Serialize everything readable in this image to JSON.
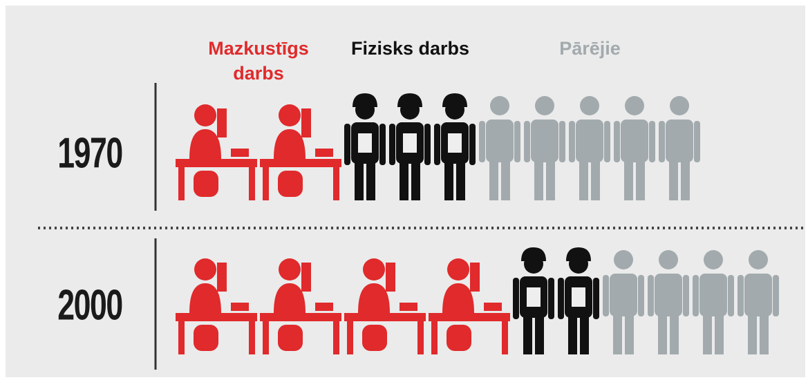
{
  "chart_data": {
    "type": "pictogram",
    "categories": [
      "1970",
      "2000"
    ],
    "series": [
      {
        "name": "Mazkustīgs darbs",
        "color": "#e02a2c",
        "values": [
          2,
          4
        ]
      },
      {
        "name": "Fizisks darbs",
        "color": "#111111",
        "values": [
          3,
          2
        ]
      },
      {
        "name": "Pārējie",
        "color": "#a2aaad",
        "values": [
          5,
          4
        ]
      }
    ]
  }
}
